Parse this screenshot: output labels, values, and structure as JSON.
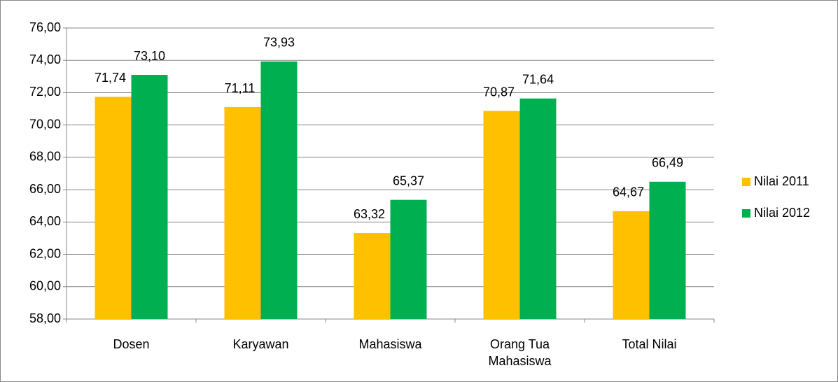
{
  "chart_data": {
    "type": "bar",
    "categories": [
      "Dosen",
      "Karyawan",
      "Mahasiswa",
      "Orang Tua Mahasiswa",
      "Total Nilai"
    ],
    "series": [
      {
        "name": "Nilai 2011",
        "color": "#ffc000",
        "values": [
          71.74,
          71.11,
          63.32,
          70.87,
          64.67
        ],
        "value_labels": [
          "71,74",
          "71,11",
          "63,32",
          "70,87",
          "64,67"
        ]
      },
      {
        "name": "Nilai 2012",
        "color": "#00b050",
        "values": [
          73.1,
          73.93,
          65.37,
          71.64,
          66.49
        ],
        "value_labels": [
          "73,10",
          "73,93",
          "65,37",
          "71,64",
          "66,49"
        ]
      }
    ],
    "ylim": [
      58,
      76
    ],
    "yticks": [
      {
        "value": 58,
        "label": "58,00"
      },
      {
        "value": 60,
        "label": "60,00"
      },
      {
        "value": 62,
        "label": "62,00"
      },
      {
        "value": 64,
        "label": "64,00"
      },
      {
        "value": 66,
        "label": "66,00"
      },
      {
        "value": 68,
        "label": "68,00"
      },
      {
        "value": 70,
        "label": "70,00"
      },
      {
        "value": 72,
        "label": "72,00"
      },
      {
        "value": 74,
        "label": "74,00"
      },
      {
        "value": 76,
        "label": "76,00"
      }
    ],
    "grid": true,
    "legend": "right"
  }
}
